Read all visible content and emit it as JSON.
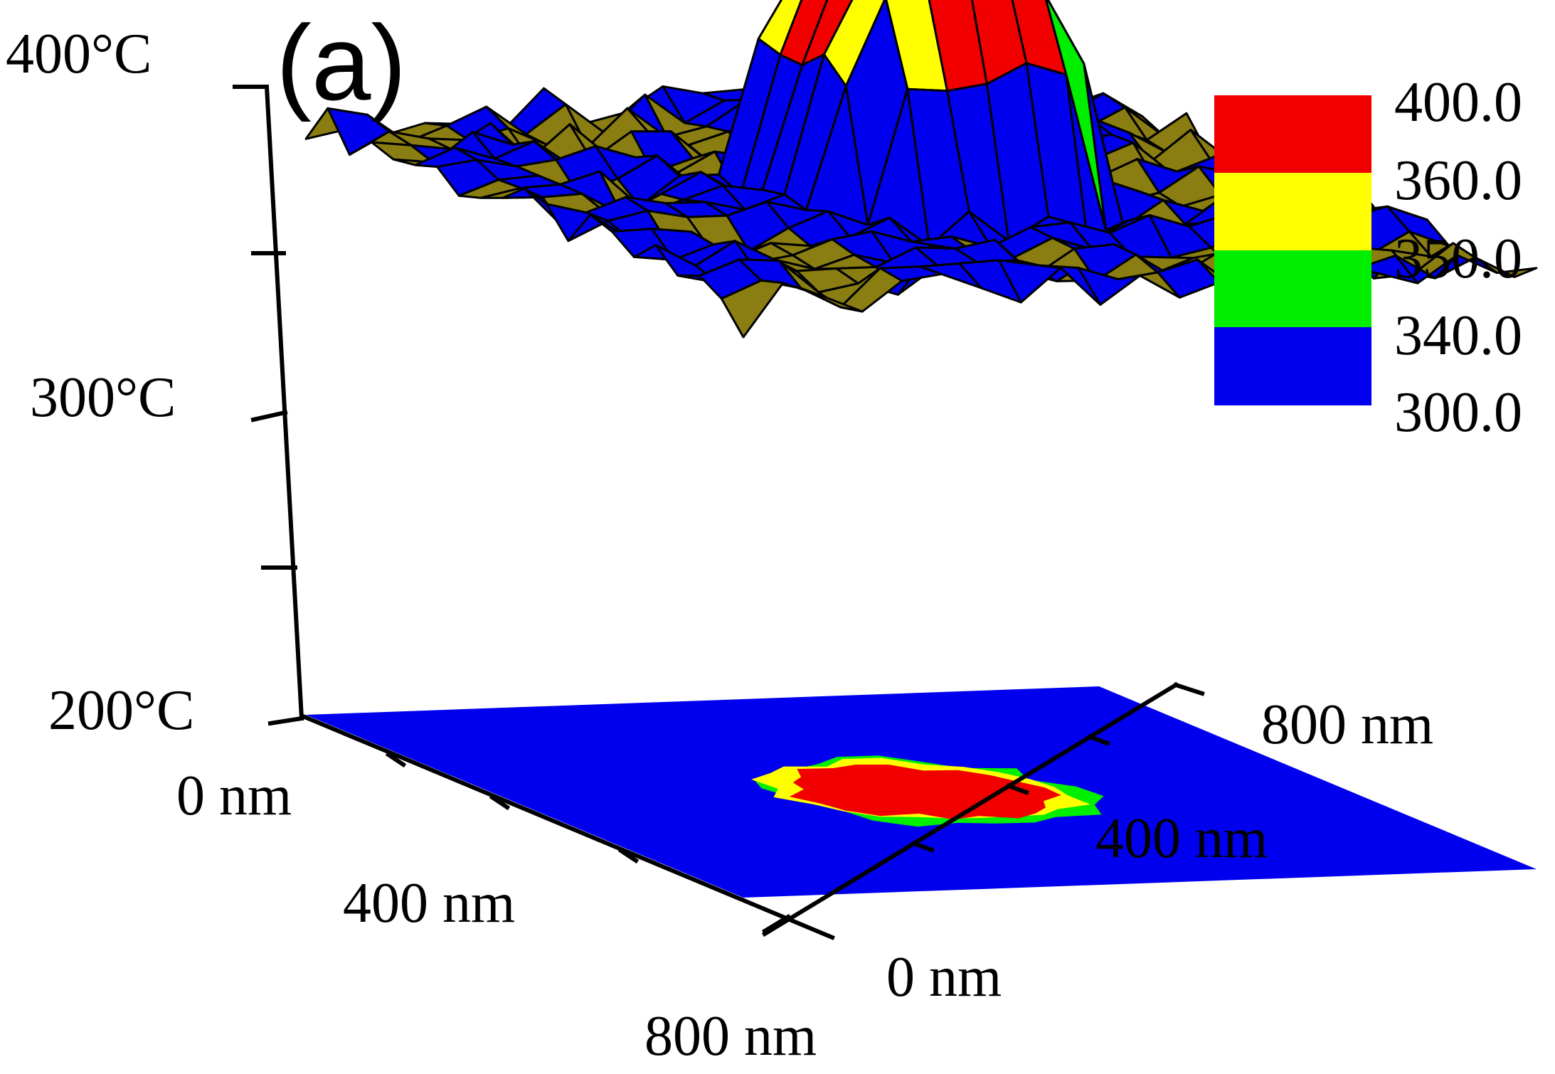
{
  "panel_label": "(a)",
  "chart_data": {
    "type": "surface3d",
    "title": "",
    "z_axis": {
      "label": "",
      "range": [
        200,
        400
      ],
      "tick_labels": [
        "400°C",
        "300°C",
        "200°C"
      ]
    },
    "x_axis": {
      "label": "",
      "range": [
        0,
        800
      ],
      "tick_labels": [
        "0 nm",
        "400 nm",
        "800 nm"
      ]
    },
    "y_axis": {
      "label": "",
      "range": [
        0,
        800
      ],
      "tick_labels": [
        "0 nm",
        "400 nm",
        "800 nm"
      ]
    },
    "colorbar": {
      "levels": [
        "400.0",
        "360.0",
        "350.0",
        "340.0",
        "300.0"
      ],
      "bands": [
        {
          "from": 360,
          "to": 400,
          "color": "#f20000"
        },
        {
          "from": 350,
          "to": 360,
          "color": "#ffff00"
        },
        {
          "from": 340,
          "to": 350,
          "color": "#00ee00"
        },
        {
          "from": 300,
          "to": 340,
          "color": "#0000ee"
        }
      ]
    },
    "below_range_color": "#8a7d12",
    "background_temperature": 300,
    "hotspot": {
      "peak_temperature": 400,
      "center_x_nm": 400,
      "center_y_nm": 400
    },
    "projection_plane": "z = 200"
  }
}
